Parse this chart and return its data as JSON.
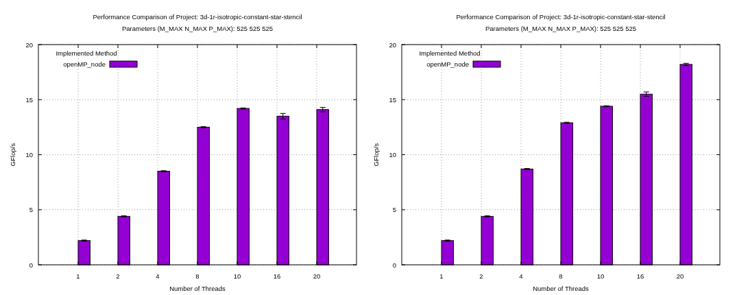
{
  "chart_data": [
    {
      "type": "bar",
      "title": "Performance Comparison of Project: 3d-1r-isotropic-constant-star-stencil",
      "subtitle": "Parameters (M_MAX N_MAX P_MAX): 525 525 525",
      "xlabel": "Number of Threads",
      "ylabel": "GFlop/s",
      "legend_title": "Implemented Method",
      "categories": [
        "1",
        "2",
        "4",
        "8",
        "10",
        "16",
        "20"
      ],
      "series": [
        {
          "name": "openMP_node",
          "color": "#9400d3",
          "values": [
            2.2,
            4.4,
            8.5,
            12.5,
            14.2,
            13.5,
            14.1
          ],
          "errors": [
            0.05,
            0.05,
            0.05,
            0.05,
            0.05,
            0.25,
            0.2
          ]
        }
      ],
      "ylim": [
        0,
        20
      ],
      "yticks": [
        0,
        5,
        10,
        15,
        20
      ],
      "grid": true,
      "legend": "top left"
    },
    {
      "type": "bar",
      "title": "Performance Comparison of Project: 3d-1r-isotropic-constant-star-stencil",
      "subtitle": "Parameters (M_MAX N_MAX P_MAX): 525 525 525",
      "xlabel": "Number of Threads",
      "ylabel": "GFlop/s",
      "legend_title": "Implemented Method",
      "categories": [
        "1",
        "2",
        "4",
        "8",
        "10",
        "16",
        "20"
      ],
      "series": [
        {
          "name": "openMP_node",
          "color": "#9400d3",
          "values": [
            2.2,
            4.4,
            8.7,
            12.9,
            14.4,
            15.5,
            18.2
          ],
          "errors": [
            0.05,
            0.05,
            0.05,
            0.05,
            0.05,
            0.2,
            0.1
          ]
        }
      ],
      "ylim": [
        0,
        20
      ],
      "yticks": [
        0,
        5,
        10,
        15,
        20
      ],
      "grid": true,
      "legend": "top left"
    }
  ]
}
